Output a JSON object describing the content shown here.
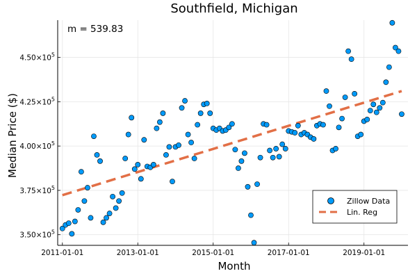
{
  "chart_data": {
    "type": "scatter",
    "title": "Southfield, Michigan",
    "xlabel": "Month",
    "ylabel": "Median Price ($)",
    "annotation": "m = 539.83",
    "x_tick_labels": [
      "2011-01-01",
      "2013-01-01",
      "2015-01-01",
      "2017-01-01",
      "2019-01-01"
    ],
    "y_ticks": [
      {
        "value": 350000,
        "mantissa": "3.50",
        "exponent": "5"
      },
      {
        "value": 375000,
        "mantissa": "3.75",
        "exponent": "5"
      },
      {
        "value": 400000,
        "mantissa": "4.00",
        "exponent": "5"
      },
      {
        "value": 425000,
        "mantissa": "4.25",
        "exponent": "5"
      },
      {
        "value": 450000,
        "mantissa": "4.50",
        "exponent": "5"
      }
    ],
    "xlim_months": [
      -1.5,
      110
    ],
    "ylim": [
      344000,
      471000
    ],
    "grid": true,
    "legend_position": "bottom-right",
    "series": [
      {
        "name": "Zillow Data",
        "color": "#009af9",
        "x": [
          "2011-01",
          "2011-02",
          "2011-03",
          "2011-04",
          "2011-05",
          "2011-06",
          "2011-07",
          "2011-08",
          "2011-09",
          "2011-10",
          "2011-11",
          "2011-12",
          "2012-01",
          "2012-02",
          "2012-03",
          "2012-04",
          "2012-05",
          "2012-06",
          "2012-07",
          "2012-08",
          "2012-09",
          "2012-10",
          "2012-11",
          "2012-12",
          "2013-01",
          "2013-02",
          "2013-03",
          "2013-04",
          "2013-05",
          "2013-06",
          "2013-07",
          "2013-08",
          "2013-09",
          "2013-10",
          "2013-11",
          "2013-12",
          "2014-01",
          "2014-02",
          "2014-03",
          "2014-04",
          "2014-05",
          "2014-06",
          "2014-07",
          "2014-08",
          "2014-09",
          "2014-10",
          "2014-11",
          "2014-12",
          "2015-01",
          "2015-02",
          "2015-03",
          "2015-04",
          "2015-05",
          "2015-06",
          "2015-07",
          "2015-08",
          "2015-09",
          "2015-10",
          "2015-11",
          "2015-12",
          "2016-01",
          "2016-02",
          "2016-03",
          "2016-04",
          "2016-05",
          "2016-06",
          "2016-07",
          "2016-08",
          "2016-09",
          "2016-10",
          "2016-11",
          "2016-12",
          "2017-01",
          "2017-02",
          "2017-03",
          "2017-04",
          "2017-05",
          "2017-06",
          "2017-07",
          "2017-08",
          "2017-09",
          "2017-10",
          "2017-11",
          "2017-12",
          "2018-01",
          "2018-02",
          "2018-03",
          "2018-04",
          "2018-05",
          "2018-06",
          "2018-07",
          "2018-08",
          "2018-09",
          "2018-10",
          "2018-11",
          "2018-12",
          "2019-01",
          "2019-02",
          "2019-03",
          "2019-04",
          "2019-05",
          "2019-06",
          "2019-07",
          "2019-08",
          "2019-09",
          "2019-10",
          "2019-11",
          "2019-12",
          "2020-01"
        ],
        "y": [
          353500,
          355500,
          356500,
          350500,
          357500,
          364000,
          385500,
          369000,
          376500,
          359500,
          405500,
          395000,
          391500,
          357000,
          359500,
          362000,
          371500,
          365000,
          369000,
          373500,
          393000,
          406500,
          416000,
          387000,
          389500,
          381500,
          403500,
          388500,
          388000,
          389500,
          410000,
          413500,
          418500,
          395000,
          399500,
          380000,
          399500,
          400500,
          421500,
          425500,
          406500,
          402000,
          393000,
          412000,
          418500,
          423500,
          424000,
          418500,
          410000,
          409000,
          410000,
          408500,
          409000,
          410500,
          412500,
          398000,
          387500,
          391500,
          396000,
          377000,
          361000,
          345500,
          378500,
          393500,
          412500,
          412000,
          397500,
          393500,
          398500,
          394000,
          401000,
          398500,
          408500,
          408000,
          407500,
          411500,
          406500,
          407500,
          406500,
          405000,
          404000,
          411500,
          412500,
          412000,
          431000,
          422500,
          397500,
          398500,
          410500,
          415500,
          427500,
          453500,
          449000,
          429500,
          405500,
          406500,
          414000,
          415000,
          420000,
          423500,
          419000,
          421500,
          424500,
          436000,
          444500,
          469500,
          455500,
          453500,
          418000
        ]
      },
      {
        "name": "Lin. Reg",
        "color": "#e26f46",
        "x": [
          "2011-01",
          "2020-01"
        ],
        "y": [
          372300,
          431000
        ]
      }
    ]
  }
}
